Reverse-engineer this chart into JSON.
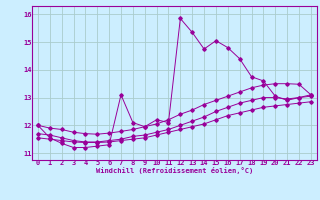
{
  "xlabel": "Windchill (Refroidissement éolien,°C)",
  "bg_color": "#cceeff",
  "line_color": "#990099",
  "grid_color": "#aacccc",
  "xlim": [
    -0.5,
    23.5
  ],
  "ylim": [
    10.75,
    16.3
  ],
  "yticks": [
    11,
    12,
    13,
    14,
    15,
    16
  ],
  "xticks": [
    0,
    1,
    2,
    3,
    4,
    5,
    6,
    7,
    8,
    9,
    10,
    11,
    12,
    13,
    14,
    15,
    16,
    17,
    18,
    19,
    20,
    21,
    22,
    23
  ],
  "series1_x": [
    0,
    1,
    2,
    3,
    4,
    5,
    6,
    7,
    8,
    9,
    10,
    11,
    12,
    13,
    14,
    15,
    16,
    17,
    18,
    19,
    20,
    21,
    22,
    23
  ],
  "series1_y": [
    12.0,
    11.55,
    11.35,
    11.2,
    11.2,
    11.25,
    11.3,
    13.1,
    12.1,
    11.95,
    12.2,
    12.1,
    15.85,
    15.35,
    14.75,
    15.05,
    14.8,
    14.4,
    13.75,
    13.6,
    13.05,
    12.9,
    13.0,
    13.1
  ],
  "series2_x": [
    0,
    1,
    2,
    3,
    4,
    5,
    6,
    7,
    8,
    9,
    10,
    11,
    12,
    13,
    14,
    15,
    16,
    17,
    18,
    19,
    20,
    21,
    22,
    23
  ],
  "series2_y": [
    11.7,
    11.65,
    11.55,
    11.45,
    11.4,
    11.4,
    11.45,
    11.5,
    11.6,
    11.65,
    11.75,
    11.85,
    12.0,
    12.15,
    12.3,
    12.5,
    12.65,
    12.8,
    12.9,
    13.0,
    13.0,
    12.95,
    13.0,
    13.05
  ],
  "series3_x": [
    0,
    1,
    2,
    3,
    4,
    5,
    6,
    7,
    8,
    9,
    10,
    11,
    12,
    13,
    14,
    15,
    16,
    17,
    18,
    19,
    20,
    21,
    22,
    23
  ],
  "series3_y": [
    11.55,
    11.5,
    11.45,
    11.4,
    11.38,
    11.38,
    11.4,
    11.45,
    11.5,
    11.55,
    11.65,
    11.75,
    11.85,
    11.95,
    12.05,
    12.2,
    12.35,
    12.45,
    12.55,
    12.65,
    12.7,
    12.75,
    12.8,
    12.85
  ],
  "series4_x": [
    0,
    1,
    2,
    3,
    4,
    5,
    6,
    7,
    8,
    9,
    10,
    11,
    12,
    13,
    14,
    15,
    16,
    17,
    18,
    19,
    20,
    21,
    22,
    23
  ],
  "series4_y": [
    12.0,
    11.9,
    11.85,
    11.75,
    11.7,
    11.68,
    11.72,
    11.78,
    11.85,
    11.95,
    12.05,
    12.2,
    12.4,
    12.55,
    12.75,
    12.9,
    13.05,
    13.2,
    13.35,
    13.45,
    13.5,
    13.5,
    13.48,
    13.1
  ],
  "tick_fontsize": 5,
  "xlabel_fontsize": 5,
  "marker_size": 1.8,
  "line_width": 0.7
}
